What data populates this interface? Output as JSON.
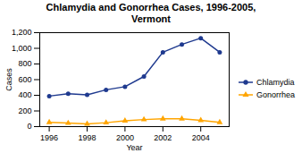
{
  "chart_data": {
    "type": "line",
    "title": "Chlamydia and Gonorrhea Cases, 1996-2005,\nVermont",
    "xlabel": "Year",
    "ylabel": "Cases",
    "x": [
      1996,
      1997,
      1998,
      1999,
      2000,
      2001,
      2002,
      2003,
      2004,
      2005
    ],
    "series": [
      {
        "name": "Chlamydia",
        "color": "#1F3A8F",
        "marker": "circle",
        "values": [
          390,
          420,
          405,
          470,
          510,
          640,
          950,
          1050,
          1130,
          950
        ]
      },
      {
        "name": "Gonorrhea",
        "color": "#FFA500",
        "marker": "triangle",
        "values": [
          55,
          45,
          35,
          50,
          75,
          90,
          100,
          100,
          80,
          55
        ]
      }
    ],
    "xlim": [
      1995.5,
      2005.5
    ],
    "xticks": [
      1996,
      1998,
      2000,
      2002,
      2004
    ],
    "ylim": [
      0,
      1200
    ],
    "yticks": [
      0,
      200,
      400,
      600,
      800,
      {
        "value": 1000,
        "label": "1,000"
      },
      {
        "value": 1200,
        "label": "1,200"
      }
    ],
    "grid": false,
    "legend": "right"
  }
}
